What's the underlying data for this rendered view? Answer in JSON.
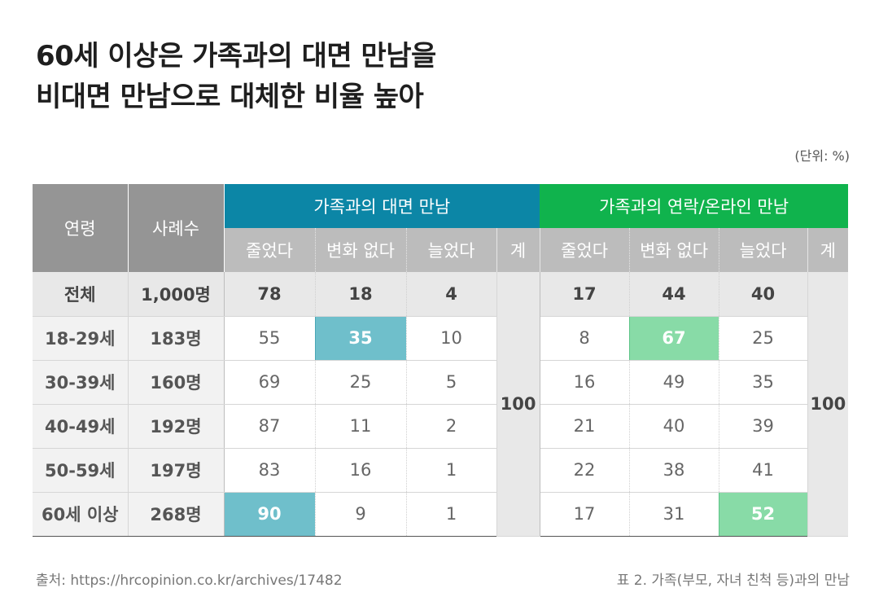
{
  "title": {
    "line1": "60세 이상은 가족과의 대면 만남을",
    "line2": "비대면 만남으로 대체한 비율 높아"
  },
  "unit": "(단위: %)",
  "header": {
    "age": "연령",
    "count": "사례수",
    "group_face": "가족과의 대면 만남",
    "group_online": "가족과의 연락/온라인 만남",
    "sub": [
      "줄었다",
      "변화 없다",
      "늘었다",
      "계"
    ]
  },
  "rows": [
    {
      "label": "전체",
      "count": "1,000명",
      "face": [
        "78",
        "18",
        "4"
      ],
      "online": [
        "17",
        "44",
        "40"
      ]
    },
    {
      "label": "18-29세",
      "count": "183명",
      "face": [
        "55",
        "35",
        "10"
      ],
      "online": [
        "8",
        "67",
        "25"
      ]
    },
    {
      "label": "30-39세",
      "count": "160명",
      "face": [
        "69",
        "25",
        "5"
      ],
      "online": [
        "16",
        "49",
        "35"
      ]
    },
    {
      "label": "40-49세",
      "count": "192명",
      "face": [
        "87",
        "11",
        "2"
      ],
      "online": [
        "21",
        "40",
        "39"
      ]
    },
    {
      "label": "50-59세",
      "count": "197명",
      "face": [
        "83",
        "16",
        "1"
      ],
      "online": [
        "22",
        "38",
        "41"
      ]
    },
    {
      "label": "60세 이상",
      "count": "268명",
      "face": [
        "90",
        "9",
        "1"
      ],
      "online": [
        "17",
        "31",
        "52"
      ]
    }
  ],
  "totals": {
    "face": "100",
    "online": "100"
  },
  "colors": {
    "face_header": "#0c86a6",
    "online_header": "#10b34d",
    "face_highlight": "#6fbfcb",
    "online_highlight": "#88dba7"
  },
  "footer": {
    "source": "출처: https://hrcopinion.co.kr/archives/17482",
    "caption": "표 2. 가족(부모, 자녀 친척 등)과의 만남"
  }
}
